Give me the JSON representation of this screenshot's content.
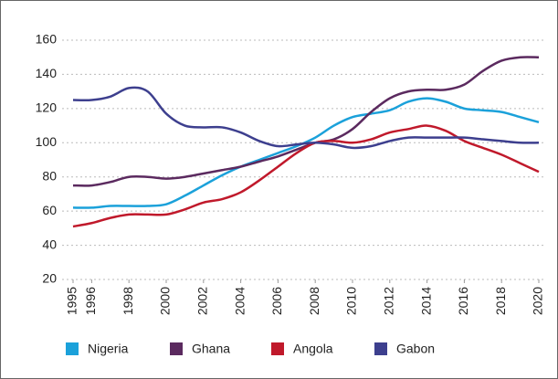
{
  "chart_data": {
    "type": "line",
    "x": [
      1995,
      1996,
      1997,
      1998,
      1999,
      2000,
      2001,
      2002,
      2003,
      2004,
      2005,
      2006,
      2007,
      2008,
      2009,
      2010,
      2011,
      2012,
      2013,
      2014,
      2015,
      2016,
      2017,
      2018,
      2019,
      2020
    ],
    "series": [
      {
        "name": "Nigeria",
        "color": "#1ba1da",
        "values": [
          62,
          62,
          63,
          63,
          63,
          64,
          69,
          75,
          81,
          86,
          90,
          94,
          98,
          103,
          110,
          115,
          117,
          119,
          124,
          126,
          124,
          120,
          119,
          118,
          115,
          112
        ]
      },
      {
        "name": "Ghana",
        "color": "#5b2a5f",
        "values": [
          75,
          75,
          77,
          80,
          80,
          79,
          80,
          82,
          84,
          86,
          89,
          92,
          96,
          100,
          102,
          108,
          118,
          126,
          130,
          131,
          131,
          134,
          142,
          148,
          150,
          150
        ]
      },
      {
        "name": "Angola",
        "color": "#c0192b",
        "values": [
          51,
          53,
          56,
          58,
          58,
          58,
          61,
          65,
          67,
          71,
          78,
          86,
          94,
          100,
          101,
          100,
          102,
          106,
          108,
          110,
          107,
          101,
          97,
          93,
          88,
          83
        ]
      },
      {
        "name": "Gabon",
        "color": "#3d3f8e",
        "values": [
          125,
          125,
          127,
          132,
          130,
          117,
          110,
          109,
          109,
          106,
          101,
          98,
          99,
          100,
          99,
          97,
          98,
          101,
          103,
          103,
          103,
          103,
          102,
          101,
          100,
          100
        ]
      }
    ],
    "xlim": [
      1995,
      2020
    ],
    "xticks": [
      1995,
      1996,
      1998,
      2000,
      2002,
      2004,
      2006,
      2008,
      2010,
      2012,
      2014,
      2016,
      2018,
      2020
    ],
    "ylim": [
      20,
      160
    ],
    "yticks": [
      20,
      40,
      60,
      80,
      100,
      120,
      140,
      160
    ],
    "grid": true
  }
}
